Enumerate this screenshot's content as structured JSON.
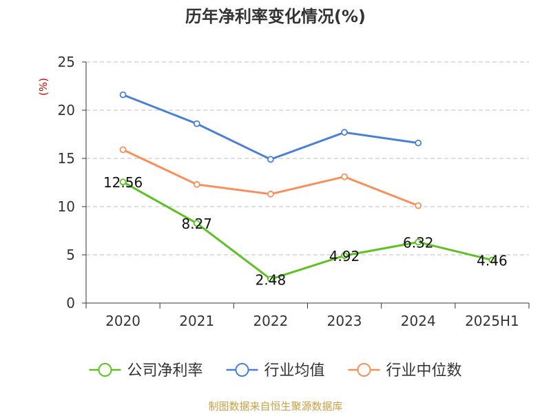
{
  "chart_data": {
    "type": "line",
    "title": "历年净利率变化情况(%)",
    "ylabel": "(%)",
    "xlabel": "",
    "ylim": [
      0,
      25
    ],
    "yticks": [
      0,
      5,
      10,
      15,
      20,
      25
    ],
    "categories": [
      "2020",
      "2021",
      "2022",
      "2023",
      "2024",
      "2025H1"
    ],
    "grid": true,
    "legend_position": "bottom",
    "series": [
      {
        "name": "公司净利率",
        "color": "#5cc121",
        "values": [
          12.56,
          8.27,
          2.48,
          4.92,
          6.32,
          4.46
        ],
        "labels": [
          "12.56",
          "8.27",
          "2.48",
          "4.92",
          "6.32",
          "4.46"
        ],
        "show_labels": true
      },
      {
        "name": "行业均值",
        "color": "#4a7fd8",
        "values": [
          21.6,
          18.6,
          14.9,
          17.7,
          16.6,
          null
        ],
        "show_labels": false
      },
      {
        "name": "行业中位数",
        "color": "#f98f58",
        "values": [
          15.9,
          12.3,
          11.3,
          13.1,
          10.1,
          null
        ],
        "show_labels": false
      }
    ]
  },
  "footer": {
    "source": "制图数据来自恒生聚源数据库"
  },
  "colors": {
    "title": "#333333",
    "axis": "#333333",
    "grid": "#bdbdbd",
    "ylabel": "#cc0000",
    "source": "#c8a044"
  }
}
